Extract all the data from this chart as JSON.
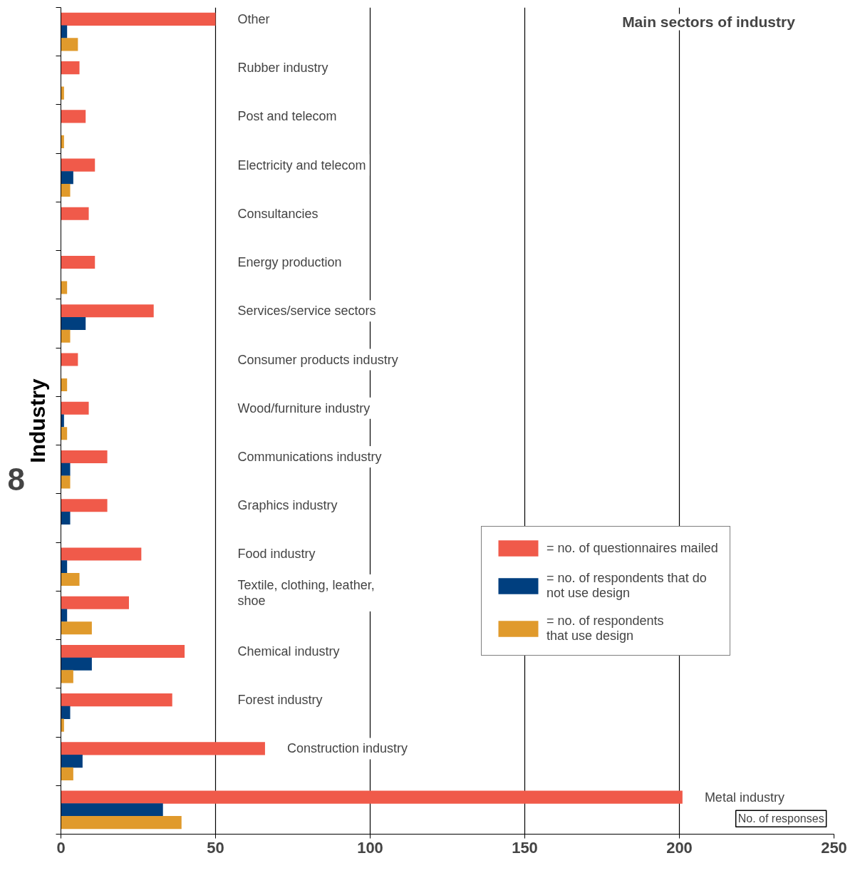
{
  "chart_data": {
    "type": "bar",
    "orientation": "horizontal",
    "title": "Main  sectors of industry",
    "xlabel": "No. of responses",
    "ylabel": "Industry",
    "categories": [
      "Other",
      "Rubber industry",
      "Post and telecom",
      "Electricity and telecom",
      "Consultancies",
      "Energy production",
      "Services/service sectors",
      "Consumer products industry",
      "Wood/furniture industry",
      "Communications industry",
      "Graphics industry",
      "Food industry",
      "Textile, clothing, leather,\nshoe",
      "Chemical industry",
      "Forest industry",
      "Construction industry",
      "Metal industry"
    ],
    "series": [
      {
        "name": "= no. of questionnaires mailed",
        "color": "#f05a4a",
        "values": [
          50,
          6,
          8,
          11,
          9,
          11,
          30,
          5.5,
          9,
          15,
          15,
          26,
          22,
          40,
          36,
          66,
          201
        ]
      },
      {
        "name": "= no. of respondents that do\nnot use design",
        "color": "#003f7f",
        "values": [
          2,
          null,
          null,
          4,
          null,
          null,
          8,
          null,
          1,
          3,
          3,
          2,
          2,
          10,
          3,
          7,
          33
        ]
      },
      {
        "name": "= no. of respondents\nthat use design",
        "color": "#e09a2c",
        "values": [
          5.5,
          1,
          1,
          3,
          null,
          2,
          3,
          2,
          2,
          3,
          null,
          6,
          10,
          4,
          1,
          4,
          39
        ]
      }
    ],
    "xlim": [
      0,
      250
    ],
    "xticks": [
      0,
      50,
      100,
      150,
      200,
      250
    ],
    "grid": "x",
    "legend": "bottom right",
    "tick_labels": "x",
    "annotations": [
      "8"
    ]
  }
}
